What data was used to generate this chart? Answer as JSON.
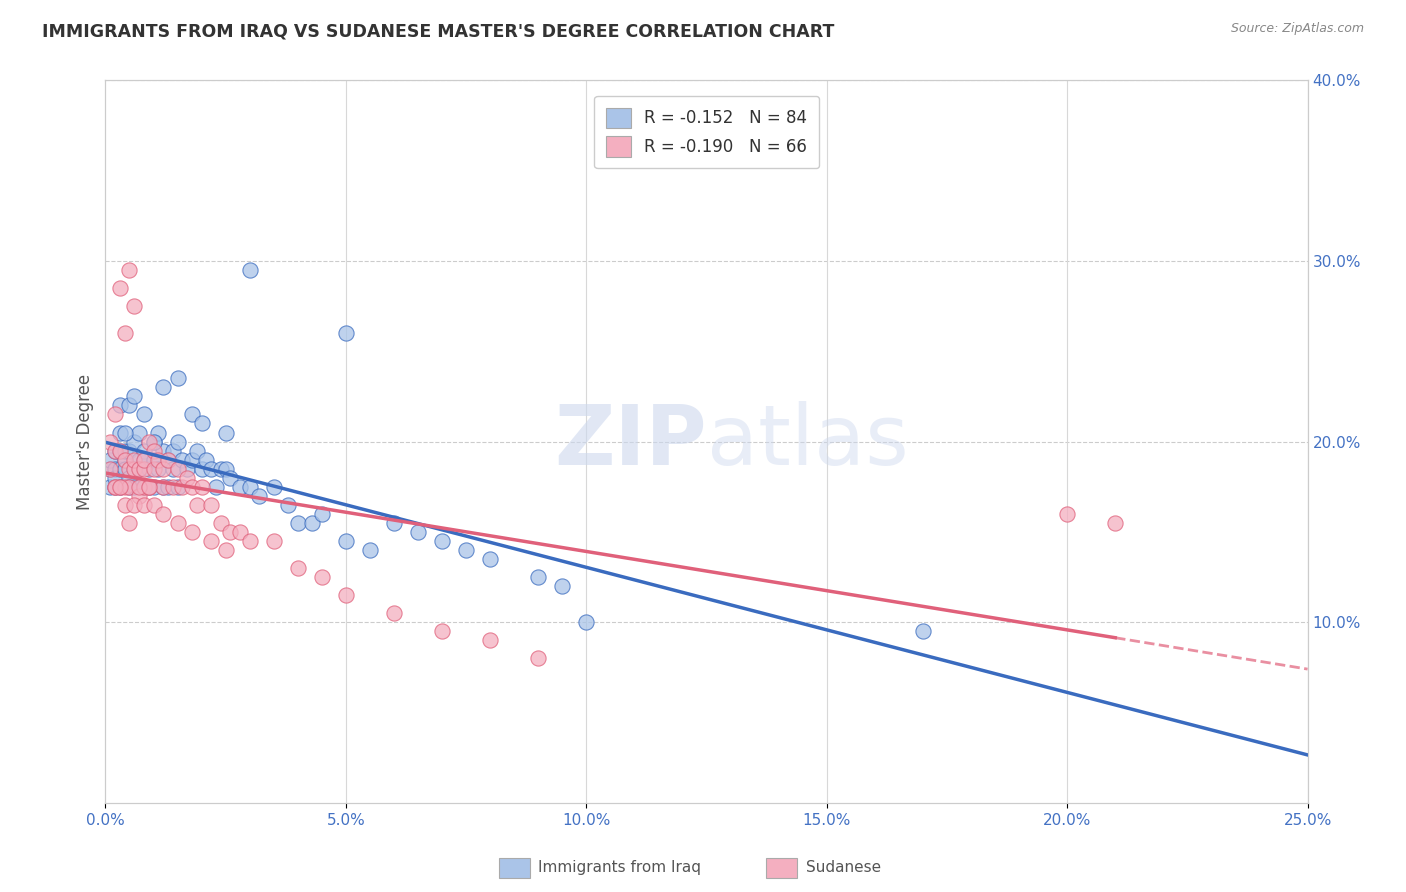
{
  "title": "IMMIGRANTS FROM IRAQ VS SUDANESE MASTER'S DEGREE CORRELATION CHART",
  "source": "Source: ZipAtlas.com",
  "ylabel": "Master's Degree",
  "xmin": 0.0,
  "xmax": 0.25,
  "ymin": 0.0,
  "ymax": 0.4,
  "yticks": [
    0.1,
    0.2,
    0.3,
    0.4
  ],
  "ytick_labels": [
    "10.0%",
    "20.0%",
    "30.0%",
    "40.0%"
  ],
  "iraq_R": -0.152,
  "iraq_N": 84,
  "sudan_R": -0.19,
  "sudan_N": 66,
  "iraq_color": "#aac4e8",
  "sudan_color": "#f4afc0",
  "iraq_line_color": "#3a6bbf",
  "sudan_line_color": "#e0607a",
  "background_color": "#ffffff",
  "iraq_x": [
    0.001,
    0.001,
    0.001,
    0.002,
    0.002,
    0.002,
    0.002,
    0.003,
    0.003,
    0.003,
    0.003,
    0.004,
    0.004,
    0.004,
    0.005,
    0.005,
    0.005,
    0.006,
    0.006,
    0.006,
    0.007,
    0.007,
    0.007,
    0.008,
    0.008,
    0.008,
    0.009,
    0.009,
    0.01,
    0.01,
    0.01,
    0.011,
    0.011,
    0.012,
    0.012,
    0.013,
    0.013,
    0.014,
    0.014,
    0.015,
    0.015,
    0.016,
    0.017,
    0.018,
    0.019,
    0.02,
    0.021,
    0.022,
    0.023,
    0.024,
    0.025,
    0.026,
    0.028,
    0.03,
    0.032,
    0.035,
    0.038,
    0.04,
    0.043,
    0.045,
    0.05,
    0.055,
    0.06,
    0.065,
    0.07,
    0.075,
    0.08,
    0.09,
    0.095,
    0.1,
    0.003,
    0.004,
    0.005,
    0.006,
    0.008,
    0.01,
    0.012,
    0.015,
    0.018,
    0.02,
    0.025,
    0.03,
    0.05,
    0.17
  ],
  "iraq_y": [
    0.185,
    0.175,
    0.19,
    0.195,
    0.175,
    0.185,
    0.18,
    0.185,
    0.195,
    0.175,
    0.205,
    0.19,
    0.185,
    0.195,
    0.18,
    0.175,
    0.195,
    0.185,
    0.175,
    0.2,
    0.19,
    0.205,
    0.185,
    0.195,
    0.175,
    0.19,
    0.185,
    0.175,
    0.2,
    0.19,
    0.175,
    0.185,
    0.205,
    0.175,
    0.195,
    0.19,
    0.175,
    0.185,
    0.195,
    0.2,
    0.175,
    0.19,
    0.185,
    0.19,
    0.195,
    0.185,
    0.19,
    0.185,
    0.175,
    0.185,
    0.185,
    0.18,
    0.175,
    0.175,
    0.17,
    0.175,
    0.165,
    0.155,
    0.155,
    0.16,
    0.145,
    0.14,
    0.155,
    0.15,
    0.145,
    0.14,
    0.135,
    0.125,
    0.12,
    0.1,
    0.22,
    0.205,
    0.22,
    0.225,
    0.215,
    0.2,
    0.23,
    0.235,
    0.215,
    0.21,
    0.205,
    0.295,
    0.26,
    0.095
  ],
  "sudan_x": [
    0.001,
    0.001,
    0.002,
    0.002,
    0.002,
    0.003,
    0.003,
    0.003,
    0.004,
    0.004,
    0.004,
    0.005,
    0.005,
    0.005,
    0.006,
    0.006,
    0.006,
    0.007,
    0.007,
    0.008,
    0.008,
    0.008,
    0.009,
    0.009,
    0.01,
    0.01,
    0.011,
    0.012,
    0.012,
    0.013,
    0.014,
    0.015,
    0.016,
    0.017,
    0.018,
    0.019,
    0.02,
    0.022,
    0.024,
    0.026,
    0.028,
    0.03,
    0.035,
    0.04,
    0.045,
    0.05,
    0.06,
    0.07,
    0.08,
    0.09,
    0.002,
    0.003,
    0.004,
    0.005,
    0.006,
    0.007,
    0.008,
    0.009,
    0.01,
    0.012,
    0.015,
    0.018,
    0.022,
    0.025,
    0.2,
    0.21
  ],
  "sudan_y": [
    0.185,
    0.2,
    0.175,
    0.195,
    0.215,
    0.175,
    0.195,
    0.285,
    0.175,
    0.26,
    0.19,
    0.185,
    0.295,
    0.175,
    0.185,
    0.275,
    0.19,
    0.185,
    0.17,
    0.185,
    0.175,
    0.19,
    0.175,
    0.2,
    0.185,
    0.195,
    0.19,
    0.185,
    0.175,
    0.19,
    0.175,
    0.185,
    0.175,
    0.18,
    0.175,
    0.165,
    0.175,
    0.165,
    0.155,
    0.15,
    0.15,
    0.145,
    0.145,
    0.13,
    0.125,
    0.115,
    0.105,
    0.095,
    0.09,
    0.08,
    0.175,
    0.175,
    0.165,
    0.155,
    0.165,
    0.175,
    0.165,
    0.175,
    0.165,
    0.16,
    0.155,
    0.15,
    0.145,
    0.14,
    0.16,
    0.155
  ]
}
